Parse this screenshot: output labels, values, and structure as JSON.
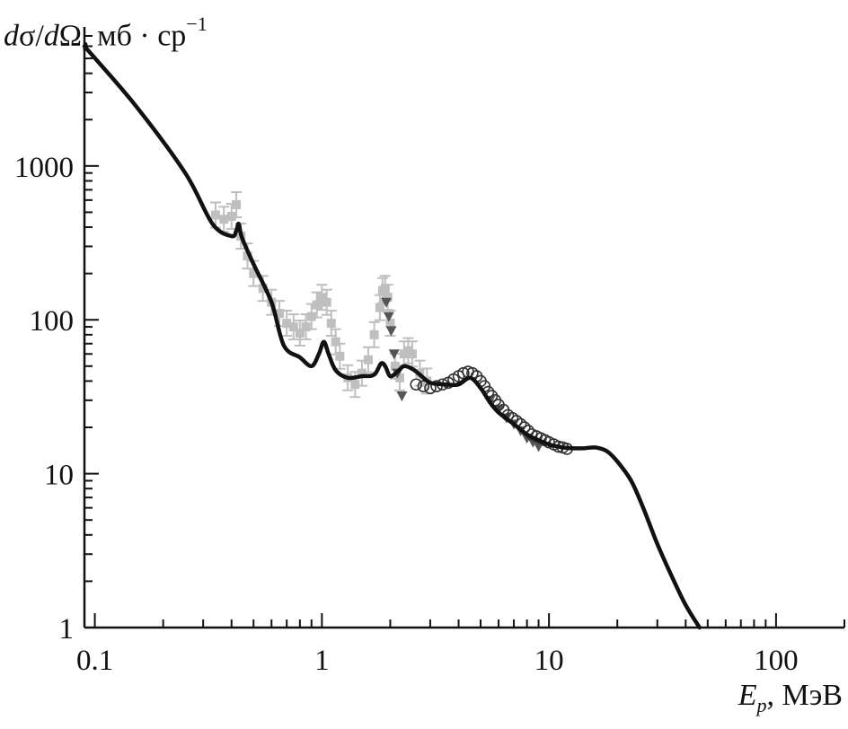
{
  "chart_data": {
    "type": "line",
    "title": "",
    "ylabel": {
      "d1": "d",
      "sigma": "σ",
      "slash": "/",
      "d2": "d",
      "omega": "Ω",
      "unit": ", мб · ср",
      "exp": "−1"
    },
    "xlabel": {
      "e": "E",
      "sub": "p",
      "unit": ", МэВ"
    },
    "xscale": "log",
    "yscale": "log",
    "xlim": [
      0.09,
      200
    ],
    "ylim": [
      1,
      7000
    ],
    "x_ticks": [
      0.1,
      1,
      10,
      100
    ],
    "x_tick_labels": [
      "0.1",
      "1",
      "10",
      "100"
    ],
    "y_ticks": [
      1,
      10,
      100,
      1000
    ],
    "y_tick_labels": [
      "1",
      "10",
      "100",
      "1000"
    ],
    "grid": false,
    "legend": "none",
    "colors": {
      "theory": "#111111",
      "gray_data": "#bfbfbf",
      "dark_data": "#333333",
      "triangle_data": "#555555"
    },
    "series": [
      {
        "kind": "theory-curve",
        "x": [
          0.09,
          0.15,
          0.25,
          0.33,
          0.4,
          0.42,
          0.43,
          0.445,
          0.5,
          0.6,
          0.68,
          0.8,
          0.9,
          0.97,
          1.02,
          1.07,
          1.15,
          1.3,
          1.5,
          1.7,
          1.82,
          1.9,
          2.0,
          2.15,
          2.3,
          2.5,
          2.7,
          3.0,
          3.5,
          4.0,
          4.5,
          5.0,
          5.5,
          6.0,
          7.0,
          8.0,
          9.0,
          10,
          11,
          12,
          14,
          16,
          18,
          20,
          23,
          26,
          30,
          35,
          40,
          46
        ],
        "y": [
          6000,
          2500,
          900,
          420,
          350,
          380,
          420,
          340,
          230,
          130,
          68,
          57,
          50,
          60,
          72,
          60,
          47,
          42,
          43,
          44,
          52,
          50,
          43,
          46,
          50,
          48,
          44,
          39,
          38,
          38,
          42,
          36,
          29,
          25,
          21,
          18,
          16.5,
          15.5,
          15,
          14.7,
          14.6,
          14.8,
          14,
          12,
          9,
          6,
          3.5,
          2.1,
          1.4,
          1
        ]
      },
      {
        "kind": "gray-error-bars",
        "x": [
          0.34,
          0.37,
          0.4,
          0.42,
          0.44,
          0.47,
          0.5,
          0.55,
          0.6,
          0.65,
          0.7,
          0.75,
          0.8,
          0.85,
          0.9,
          0.95,
          1.0,
          1.05,
          1.1,
          1.15,
          1.2,
          1.3,
          1.4,
          1.5,
          1.6,
          1.7,
          1.8,
          1.85,
          1.9,
          1.95,
          2.0,
          2.1,
          2.2,
          2.3,
          2.4,
          2.5,
          2.7,
          2.9
        ],
        "y": [
          480,
          450,
          470,
          560,
          350,
          260,
          200,
          160,
          130,
          110,
          95,
          90,
          82,
          90,
          105,
          125,
          140,
          130,
          95,
          72,
          58,
          42,
          38,
          45,
          55,
          80,
          120,
          155,
          160,
          140,
          95,
          50,
          42,
          60,
          63,
          60,
          45,
          40
        ]
      },
      {
        "kind": "dark-triangles",
        "x": [
          1.92,
          1.97,
          2.02,
          2.08,
          2.15,
          2.25,
          5.5,
          6.0,
          6.5,
          7.0,
          7.5,
          8.0,
          8.5,
          9.0
        ],
        "y": [
          130,
          105,
          85,
          60,
          45,
          32,
          30,
          26,
          23,
          21,
          19,
          17,
          16,
          15
        ]
      },
      {
        "kind": "dark-circles",
        "x": [
          2.6,
          2.8,
          3.0,
          3.2,
          3.4,
          3.6,
          3.8,
          4.0,
          4.2,
          4.4,
          4.6,
          4.8,
          5.0,
          5.2,
          5.4,
          5.6,
          5.8,
          6.0,
          6.3,
          6.6,
          6.9,
          7.2,
          7.5,
          7.8,
          8.1,
          8.4,
          8.8,
          9.2,
          9.6,
          10.0,
          10.5,
          11.0,
          11.5,
          12.0
        ],
        "y": [
          38,
          37,
          36,
          37,
          38,
          39,
          41,
          43,
          45,
          46,
          45,
          43,
          40,
          37,
          34,
          32,
          30,
          28,
          26,
          24,
          23,
          22,
          21,
          20,
          19,
          18,
          17.5,
          17,
          16.5,
          16,
          15.5,
          15,
          14.8,
          14.5
        ]
      }
    ]
  }
}
